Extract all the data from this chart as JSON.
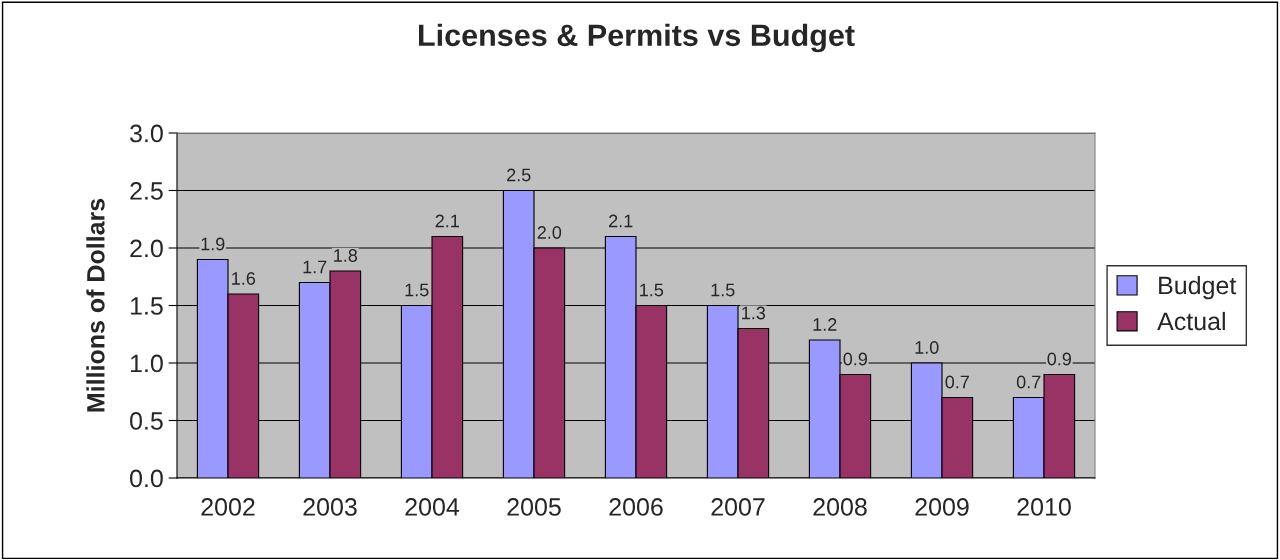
{
  "chart_data": {
    "type": "bar",
    "title": "Licenses & Permits vs Budget",
    "ylabel": "Millions of Dollars",
    "categories": [
      "2002",
      "2003",
      "2004",
      "2005",
      "2006",
      "2007",
      "2008",
      "2009",
      "2010"
    ],
    "series": [
      {
        "name": "Budget",
        "color": "#9999ff",
        "values": [
          1.9,
          1.7,
          1.5,
          2.5,
          2.1,
          1.5,
          1.2,
          1.0,
          0.7
        ],
        "value_labels": [
          "1.9",
          "1.7",
          "1.5",
          "2.5",
          "2.1",
          "1.5",
          "1.2",
          "1.0",
          "0.7"
        ]
      },
      {
        "name": "Actual",
        "color": "#993366",
        "values": [
          1.6,
          1.8,
          2.1,
          2.0,
          1.5,
          1.3,
          0.9,
          0.7,
          0.9
        ],
        "value_labels": [
          "1.6",
          "1.8",
          "2.1",
          "2.0",
          "1.5",
          "1.3",
          "0.9",
          "0.7",
          "0.9"
        ]
      }
    ],
    "ylim": [
      0,
      3
    ],
    "yticks": [
      {
        "value": 0,
        "label": "0.0"
      },
      {
        "value": 0.5,
        "label": "0.5"
      },
      {
        "value": 1,
        "label": "1.0"
      },
      {
        "value": 1.5,
        "label": "1.5"
      },
      {
        "value": 2,
        "label": "2.0"
      },
      {
        "value": 2.5,
        "label": "2.5"
      },
      {
        "value": 3,
        "label": "3.0"
      }
    ],
    "grid": "y",
    "legend": "right"
  }
}
